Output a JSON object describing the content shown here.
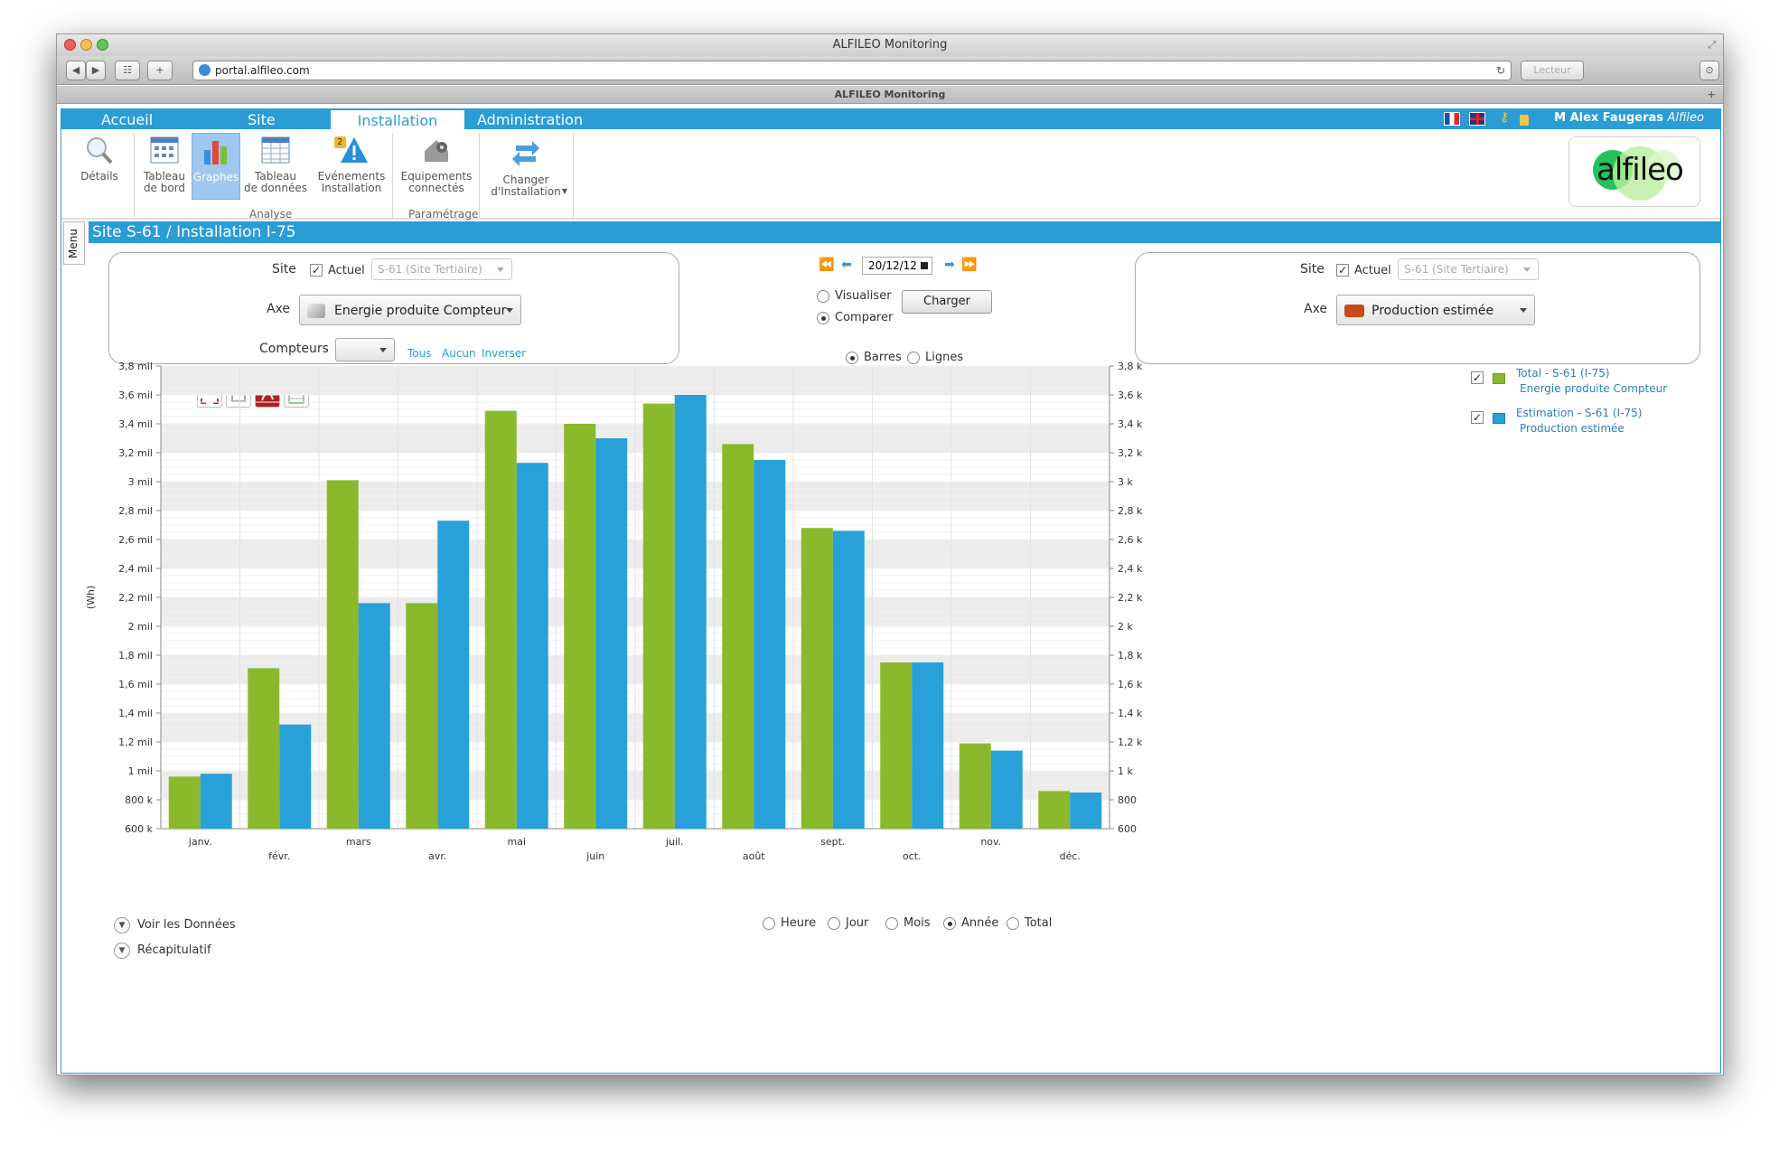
{
  "browser": {
    "window_title": "ALFILEO Monitoring",
    "url": "portal.alfileo.com",
    "reader_label": "Lecteur",
    "tab_title": "ALFILEO Monitoring"
  },
  "menu": {
    "tabs": [
      {
        "label": "Accueil"
      },
      {
        "label": "Site"
      },
      {
        "label": "Installation"
      },
      {
        "label": "Administration"
      }
    ],
    "active_tab": "Installation",
    "user_name": "M Alex Faugeras",
    "user_company": "Alfileo"
  },
  "ribbon": {
    "details": "Détails",
    "tableau_bord_1": "Tableau",
    "tableau_bord_2": "de bord",
    "graphes": "Graphes",
    "tableau_donnees_1": "Tableau",
    "tableau_donnees_2": "de données",
    "evenements_1": "Evénements",
    "evenements_2": "Installation",
    "evenements_badge": "2",
    "equipements_1": "Equipements",
    "equipements_2": "connectés",
    "changer_1": "Changer",
    "changer_2": "d'Installation",
    "group_analyse": "Analyse",
    "group_parametrage": "Paramétrage",
    "logo_text": "alfileo"
  },
  "side_menu_label": "Menu",
  "page_path": "Site S-61 / Installation I-75",
  "left_panel": {
    "site_label": "Site",
    "actuel_label": "Actuel",
    "site_value": "S-61 (Site Tertiaire)",
    "axe_label": "Axe",
    "axe_value": "Energie produite Compteur",
    "compteurs_label": "Compteurs",
    "link_tous": "Tous",
    "link_aucun": "Aucun",
    "link_inverser": "Inverser"
  },
  "center_controls": {
    "date": "20/12/12",
    "visualiser": "Visualiser",
    "comparer": "Comparer",
    "charger": "Charger",
    "barres": "Barres",
    "lignes": "Lignes",
    "mode": "Comparer",
    "chart_style": "Barres"
  },
  "right_panel": {
    "site_label": "Site",
    "actuel_label": "Actuel",
    "site_value": "S-61 (Site Tertiaire)",
    "axe_label": "Axe",
    "axe_value": "Production estimée"
  },
  "legend": [
    {
      "line1": "Total - S-61 (I-75)",
      "line2": "Energie produite Compteur",
      "color": "#8aba2c",
      "checked": true
    },
    {
      "line1": "Estimation - S-61 (I-75)",
      "line2": "Production estimée",
      "color": "#28a0d8",
      "checked": true
    }
  ],
  "period": {
    "options": [
      "Heure",
      "Jour",
      "Mois",
      "Année",
      "Total"
    ],
    "selected": "Année"
  },
  "footer": {
    "voir_donnees": "Voir les Données",
    "recapitulatif": "Récapitulatif"
  },
  "chart_data": {
    "type": "bar",
    "categories": [
      "janv.",
      "févr.",
      "mars",
      "avr.",
      "mai",
      "juin",
      "juil.",
      "août",
      "sept.",
      "oct.",
      "nov.",
      "déc."
    ],
    "series": [
      {
        "name": "Total - S-61 (I-75)",
        "color": "#8aba2c",
        "values": [
          960,
          1710,
          3010,
          2160,
          3490,
          3400,
          3540,
          3260,
          2680,
          1750,
          1190,
          860
        ]
      },
      {
        "name": "Estimation - S-61 (I-75)",
        "color": "#28a0d8",
        "values": [
          980,
          1320,
          2160,
          2730,
          3130,
          3300,
          3600,
          3150,
          2660,
          1750,
          1140,
          850
        ]
      }
    ],
    "ylabel": "(Wh)",
    "ylim": [
      600,
      3800
    ],
    "left_ticks": [
      "600 k",
      "800 k",
      "1 mil",
      "1,2 mil",
      "1,4 mil",
      "1,6 mil",
      "1,8 mil",
      "2 mil",
      "2,2 mil",
      "2,4 mil",
      "2,6 mil",
      "2,8 mil",
      "3 mil",
      "3,2 mil",
      "3,4 mil",
      "3,6 mil",
      "3,8 mil"
    ],
    "right_ticks": [
      "600",
      "800",
      "1 k",
      "1,2 k",
      "1,4 k",
      "1,6 k",
      "1,8 k",
      "2 k",
      "2,2 k",
      "2,4 k",
      "2,6 k",
      "2,8 k",
      "3 k",
      "3,2 k",
      "3,4 k",
      "3,6 k",
      "3,8 k"
    ],
    "grid": true,
    "legend_position": "right"
  }
}
